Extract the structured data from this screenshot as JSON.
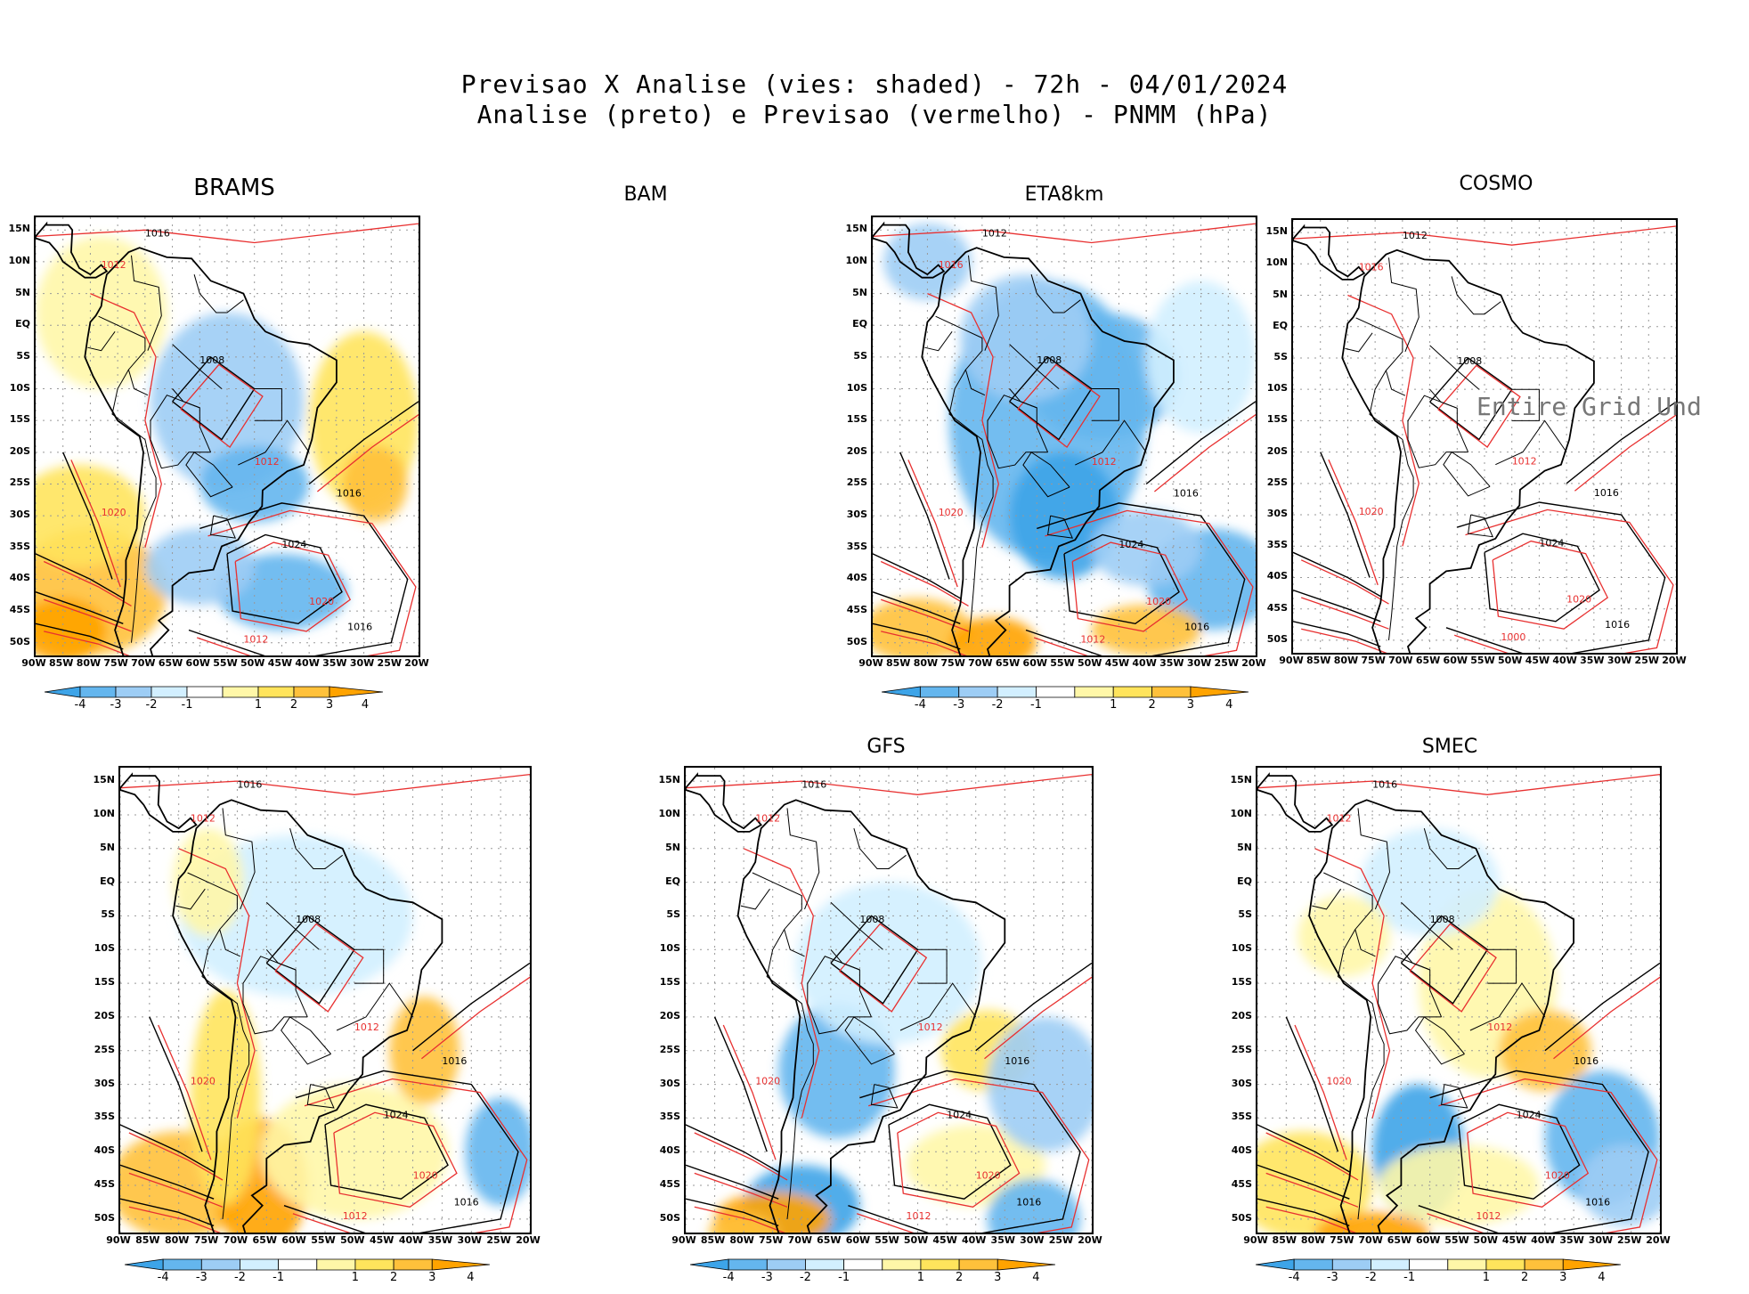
{
  "figure": {
    "title_line1": "Previsao X Analise (vies: shaded) - 72h - 04/01/2024",
    "title_line2": "Analise (preto) e Previsao (vermelho) - PNMM (hPa)",
    "undefined_note": "Entire Grid Und"
  },
  "axes": {
    "lat_labels": [
      "15N",
      "10N",
      "5N",
      "EQ",
      "5S",
      "10S",
      "15S",
      "20S",
      "25S",
      "30S",
      "35S",
      "40S",
      "45S",
      "50S"
    ],
    "lon_labels": [
      "90W",
      "85W",
      "80W",
      "75W",
      "70W",
      "65W",
      "60W",
      "55W",
      "50W",
      "45W",
      "40W",
      "35W",
      "30W",
      "25W",
      "20W"
    ]
  },
  "colorbar": {
    "ticks": [
      "-4",
      "-3",
      "-2",
      "-1",
      "1",
      "2",
      "3",
      "4"
    ],
    "colors": [
      "#3da4e8",
      "#64b6ee",
      "#9dcdf5",
      "#d2efff",
      "#ffffff",
      "#fff7a8",
      "#ffe45c",
      "#ffc13b",
      "#ffa300"
    ]
  },
  "colors": {
    "analysis_contour": "#000000",
    "forecast_contour": "#e83030"
  },
  "chart_data": [
    {
      "type": "heatmap",
      "panel": "BRAMS",
      "title": "BRAMS",
      "bias_pattern": "warm-southwest",
      "contour_labels": [
        "1016",
        "1012",
        "1008",
        "1012",
        "1016",
        "1020",
        "1024",
        "1020",
        "1016",
        "1012"
      ],
      "xlim": [
        -90,
        -20
      ],
      "ylim": [
        -52,
        17
      ]
    },
    {
      "type": "heatmap",
      "panel": "BAM",
      "title": "BAM",
      "bias_pattern": "none",
      "contour_labels": [],
      "xlim": [
        -90,
        -20
      ],
      "ylim": [
        -52,
        17
      ]
    },
    {
      "type": "heatmap",
      "panel": "ETA8km",
      "title": "ETA8km",
      "bias_pattern": "cold-continent",
      "contour_labels": [
        "1012",
        "1016",
        "1008",
        "1012",
        "1016",
        "1020",
        "1024",
        "1020",
        "1016",
        "1012"
      ],
      "xlim": [
        -90,
        -20
      ],
      "ylim": [
        -52,
        17
      ]
    },
    {
      "type": "heatmap",
      "panel": "COSMO",
      "title": "COSMO",
      "bias_pattern": "undefined",
      "contour_labels": [
        "1012",
        "1016",
        "1008",
        "1012",
        "1016",
        "1020",
        "1024",
        "1020",
        "1016",
        "1000"
      ],
      "xlim": [
        -90,
        -20
      ],
      "ylim": [
        -52,
        17
      ]
    },
    {
      "type": "heatmap",
      "panel": "bottom-left",
      "title": "",
      "bias_pattern": "warm-south",
      "contour_labels": [
        "1016",
        "1012",
        "1008",
        "1012",
        "1016",
        "1020",
        "1024",
        "1020",
        "1016",
        "1012"
      ],
      "xlim": [
        -90,
        -20
      ],
      "ylim": [
        -52,
        17
      ]
    },
    {
      "type": "heatmap",
      "panel": "GFS",
      "title": "GFS",
      "bias_pattern": "mixed",
      "contour_labels": [
        "1016",
        "1012",
        "1008",
        "1012",
        "1016",
        "1020",
        "1024",
        "1020",
        "1016",
        "1012"
      ],
      "xlim": [
        -90,
        -20
      ],
      "ylim": [
        -52,
        17
      ]
    },
    {
      "type": "heatmap",
      "panel": "SMEC",
      "title": "SMEC",
      "bias_pattern": "mixed-warm",
      "contour_labels": [
        "1016",
        "1012",
        "1008",
        "1012",
        "1016",
        "1020",
        "1024",
        "1020",
        "1016",
        "1012"
      ],
      "xlim": [
        -90,
        -20
      ],
      "ylim": [
        -52,
        17
      ]
    }
  ]
}
